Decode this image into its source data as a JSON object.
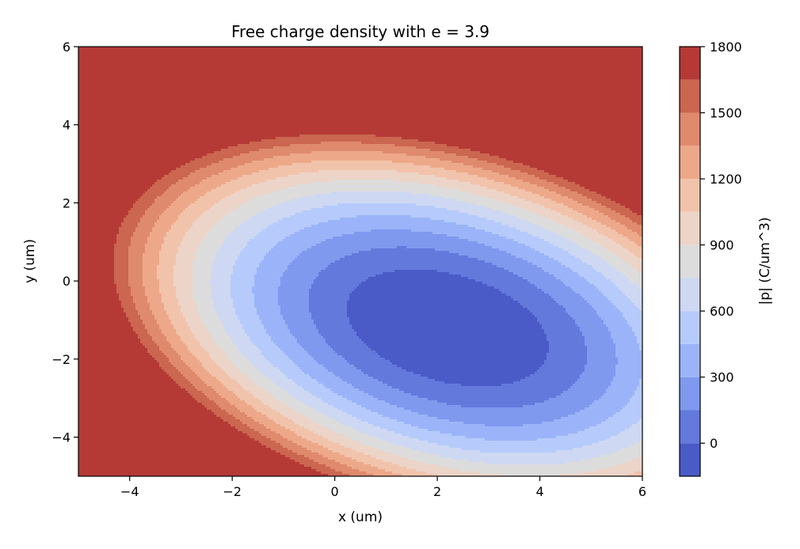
{
  "chart_data": {
    "type": "contour",
    "title": "Free charge density with e = 3.9",
    "xlabel": "x (um)",
    "ylabel": "y (um)",
    "colorbar_label": "|p| (C/um^3)",
    "xlim": [
      -5,
      6
    ],
    "ylim": [
      -5,
      6
    ],
    "x_ticks": [
      -4,
      -2,
      0,
      2,
      4,
      6
    ],
    "y_ticks": [
      -4,
      -2,
      0,
      2,
      4,
      6
    ],
    "x_tick_labels": [
      "−4",
      "−2",
      "0",
      "2",
      "4",
      "6"
    ],
    "y_tick_labels": [
      "−4",
      "−2",
      "0",
      "2",
      "4",
      "6"
    ],
    "colorbar_range": [
      -150,
      1800
    ],
    "colorbar_ticks": [
      0,
      300,
      600,
      900,
      1200,
      1500,
      1800
    ],
    "colorbar_tick_labels": [
      "0",
      "300",
      "600",
      "900",
      "1200",
      "1500",
      "1800"
    ],
    "levels": [
      -150,
      0,
      150,
      300,
      450,
      600,
      750,
      900,
      1050,
      1200,
      1350,
      1500,
      1650,
      1800
    ],
    "colormap": "coolwarm",
    "level_colors": [
      "#4a5bc8",
      "#6479dc",
      "#7f99ee",
      "#9bb4f9",
      "#b6cbfb",
      "#ced8f2",
      "#dddcdc",
      "#ecd4c8",
      "#f2c3ab",
      "#eda88a",
      "#df8a6d",
      "#cb6650",
      "#b53a36"
    ],
    "field": {
      "form": "quadratic",
      "minimum_location": [
        2.2,
        -1.2
      ],
      "minimum_value": -165,
      "coefficients": {
        "a": 48,
        "b": 83,
        "c": 42
      }
    },
    "grid": false
  }
}
